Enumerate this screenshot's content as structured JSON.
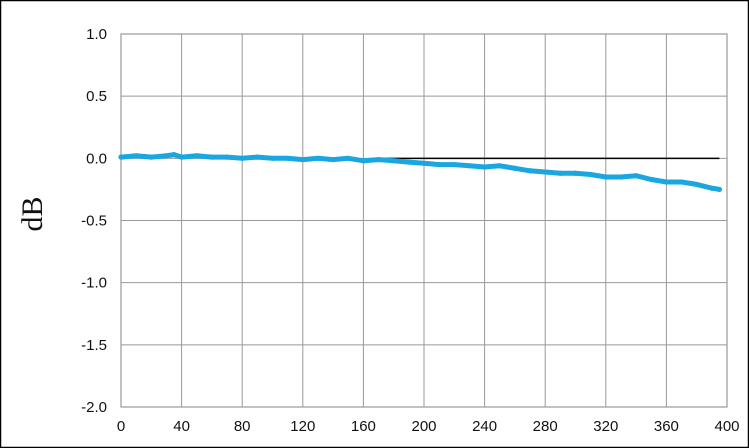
{
  "chart_data": {
    "type": "line",
    "title": "",
    "xlabel": "",
    "ylabel": "dB",
    "xlim": [
      0,
      400
    ],
    "ylim": [
      -2.0,
      1.0
    ],
    "x_ticks": [
      "0",
      "40",
      "80",
      "120",
      "160",
      "200",
      "240",
      "280",
      "320",
      "360",
      "400"
    ],
    "y_ticks": [
      "1.0",
      "0.5",
      "0.0",
      "-0.5",
      "-1.0",
      "-1.5",
      "-2.0"
    ],
    "grid": true,
    "colors": {
      "series": "#1aa7df",
      "reference": "#000000",
      "grid": "#999999",
      "frame": "#000000"
    },
    "reference_line": {
      "y": 0.0,
      "x": [
        170,
        395
      ]
    },
    "series": [
      {
        "values": [
          [
            0,
            0.01
          ],
          [
            10,
            0.02
          ],
          [
            20,
            0.01
          ],
          [
            30,
            0.02
          ],
          [
            35,
            0.03
          ],
          [
            40,
            0.01
          ],
          [
            50,
            0.02
          ],
          [
            60,
            0.01
          ],
          [
            70,
            0.01
          ],
          [
            80,
            0.0
          ],
          [
            90,
            0.01
          ],
          [
            100,
            0.0
          ],
          [
            110,
            0.0
          ],
          [
            120,
            -0.01
          ],
          [
            130,
            0.0
          ],
          [
            140,
            -0.01
          ],
          [
            150,
            0.0
          ],
          [
            160,
            -0.02
          ],
          [
            170,
            -0.01
          ],
          [
            180,
            -0.02
          ],
          [
            190,
            -0.03
          ],
          [
            200,
            -0.04
          ],
          [
            210,
            -0.05
          ],
          [
            220,
            -0.05
          ],
          [
            230,
            -0.06
          ],
          [
            240,
            -0.07
          ],
          [
            250,
            -0.06
          ],
          [
            260,
            -0.08
          ],
          [
            270,
            -0.1
          ],
          [
            280,
            -0.11
          ],
          [
            290,
            -0.12
          ],
          [
            300,
            -0.12
          ],
          [
            310,
            -0.13
          ],
          [
            320,
            -0.15
          ],
          [
            330,
            -0.15
          ],
          [
            340,
            -0.14
          ],
          [
            350,
            -0.17
          ],
          [
            360,
            -0.19
          ],
          [
            370,
            -0.19
          ],
          [
            380,
            -0.21
          ],
          [
            390,
            -0.24
          ],
          [
            395,
            -0.25
          ]
        ]
      }
    ]
  }
}
